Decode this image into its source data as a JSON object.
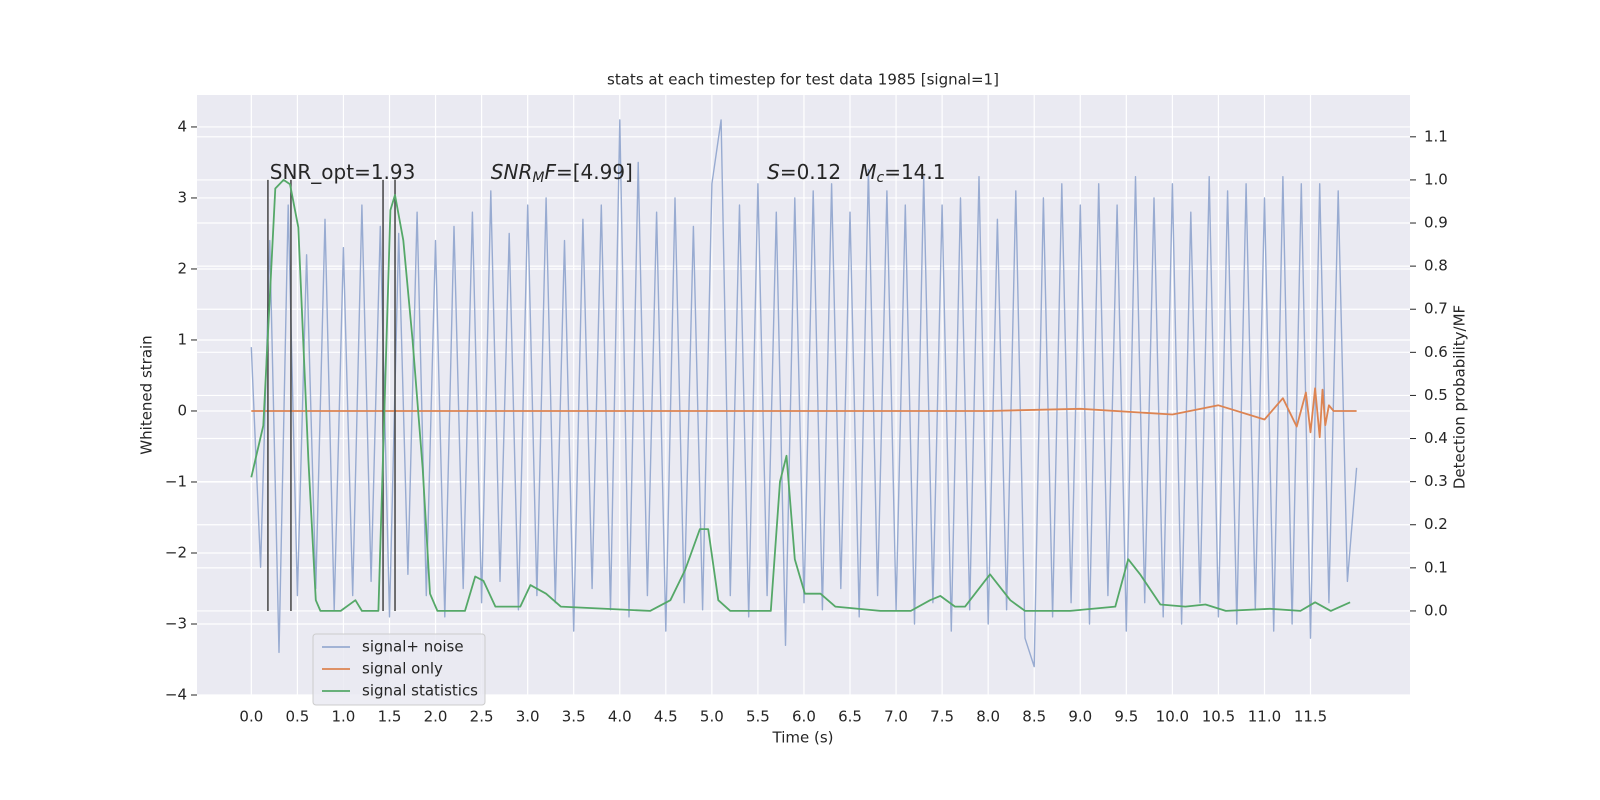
{
  "chart_data": {
    "type": "line",
    "title": "stats at each timestep for test data 1985 [signal=1]",
    "xlabel": "Time (s)",
    "ylabel": "Whitened strain",
    "y2label": "Detection probability/MF",
    "xlim": [
      -0.59,
      12.58
    ],
    "ylim": [
      -4.0,
      4.45
    ],
    "y2lim": [
      -0.195,
      1.197
    ],
    "xticks": [
      {
        "value": 0,
        "label": "0.0"
      },
      {
        "value": 0.5,
        "label": "0.5"
      },
      {
        "value": 1,
        "label": "1.0"
      },
      {
        "value": 1.5,
        "label": "1.5"
      },
      {
        "value": 2,
        "label": "2.0"
      },
      {
        "value": 2.5,
        "label": "2.5"
      },
      {
        "value": 3,
        "label": "3.0"
      },
      {
        "value": 3.5,
        "label": "3.5"
      },
      {
        "value": 4,
        "label": "4.0"
      },
      {
        "value": 4.5,
        "label": "4.5"
      },
      {
        "value": 5,
        "label": "5.0"
      },
      {
        "value": 5.5,
        "label": "5.5"
      },
      {
        "value": 6,
        "label": "6.0"
      },
      {
        "value": 6.5,
        "label": "6.5"
      },
      {
        "value": 7,
        "label": "7.0"
      },
      {
        "value": 7.5,
        "label": "7.5"
      },
      {
        "value": 8,
        "label": "8.0"
      },
      {
        "value": 8.5,
        "label": "8.5"
      },
      {
        "value": 9,
        "label": "9.0"
      },
      {
        "value": 9.5,
        "label": "9.5"
      },
      {
        "value": 10,
        "label": "10.0"
      },
      {
        "value": 10.5,
        "label": "10.5"
      },
      {
        "value": 11,
        "label": "11.0"
      },
      {
        "value": 11.5,
        "label": "11.5"
      }
    ],
    "yticks": [
      {
        "value": -4,
        "label": "−4"
      },
      {
        "value": -3,
        "label": "−3"
      },
      {
        "value": -2,
        "label": "−2"
      },
      {
        "value": -1,
        "label": "−1"
      },
      0,
      1,
      2,
      3,
      4
    ],
    "y2ticks": [
      {
        "value": 0,
        "label": "0.0"
      },
      {
        "value": 0.1,
        "label": "0.1"
      },
      {
        "value": 0.2,
        "label": "0.2"
      },
      {
        "value": 0.3,
        "label": "0.3"
      },
      {
        "value": 0.4,
        "label": "0.4"
      },
      {
        "value": 0.5,
        "label": "0.5"
      },
      {
        "value": 0.6,
        "label": "0.6"
      },
      {
        "value": 0.7,
        "label": "0.7"
      },
      {
        "value": 0.8,
        "label": "0.8"
      },
      {
        "value": 0.9,
        "label": "0.9"
      },
      {
        "value": 1,
        "label": "1.0"
      },
      {
        "value": 1.1,
        "label": "1.1"
      }
    ],
    "grid": true,
    "legend": "lower left",
    "series": [
      {
        "name": "signal+ noise",
        "color": "#98abd1",
        "x": [
          0,
          0.1,
          0.2,
          0.3,
          0.4,
          0.5,
          0.6,
          0.7,
          0.8,
          0.9,
          1,
          1.1,
          1.2,
          1.3,
          1.4,
          1.5,
          1.6,
          1.7,
          1.8,
          1.9,
          2,
          2.1,
          2.2,
          2.3,
          2.4,
          2.5,
          2.6,
          2.7,
          2.8,
          2.9,
          3,
          3.1,
          3.2,
          3.3,
          3.4,
          3.5,
          3.6,
          3.7,
          3.8,
          3.9,
          4,
          4.1,
          4.2,
          4.3,
          4.4,
          4.5,
          4.6,
          4.7,
          4.8,
          4.9,
          5,
          5.1,
          5.2,
          5.3,
          5.4,
          5.5,
          5.6,
          5.7,
          5.8,
          5.9,
          6,
          6.1,
          6.2,
          6.3,
          6.4,
          6.5,
          6.6,
          6.7,
          6.8,
          6.9,
          7,
          7.1,
          7.2,
          7.3,
          7.4,
          7.5,
          7.6,
          7.7,
          7.8,
          7.9,
          8,
          8.1,
          8.2,
          8.3,
          8.4,
          8.5,
          8.6,
          8.7,
          8.8,
          8.9,
          9,
          9.1,
          9.2,
          9.3,
          9.4,
          9.5,
          9.6,
          9.7,
          9.8,
          9.9,
          10,
          10.1,
          10.2,
          10.3,
          10.4,
          10.5,
          10.6,
          10.7,
          10.8,
          10.9,
          11,
          11.1,
          11.2,
          11.3,
          11.4,
          11.5,
          11.6,
          11.7,
          11.8,
          11.9,
          12
        ],
        "values": [
          0.9,
          -2.2,
          2.4,
          -3.4,
          2.9,
          -2.6,
          2.2,
          -2.5,
          2.7,
          -2.8,
          2.3,
          -2.6,
          2.9,
          -2.4,
          2.6,
          -2.9,
          2.5,
          -2.3,
          2.8,
          -2.6,
          2.4,
          -2.9,
          2.6,
          -2.5,
          2.8,
          -2.7,
          3.1,
          -2.4,
          2.5,
          -2.8,
          2.9,
          -2.6,
          3.0,
          -2.7,
          2.4,
          -3.1,
          2.7,
          -2.5,
          2.9,
          -2.8,
          4.1,
          -2.9,
          3.5,
          -2.6,
          2.8,
          -3.1,
          3.0,
          -2.7,
          2.6,
          -2.8,
          3.2,
          4.1,
          -2.6,
          2.9,
          -2.9,
          3.2,
          -2.6,
          2.8,
          -3.3,
          3.0,
          -2.7,
          3.1,
          -2.8,
          3.2,
          -2.5,
          2.8,
          -2.9,
          3.4,
          -2.6,
          3.1,
          -2.8,
          2.9,
          -3.0,
          3.3,
          -2.7,
          2.9,
          -3.1,
          3.0,
          -2.8,
          3.3,
          -3.0,
          2.7,
          -2.8,
          3.1,
          -3.2,
          -3.6,
          3.0,
          -2.9,
          3.2,
          -2.7,
          2.9,
          -3.0,
          3.2,
          -2.6,
          2.9,
          -3.1,
          3.3,
          -2.7,
          3.0,
          -2.9,
          3.2,
          -3.0,
          2.8,
          -2.7,
          3.3,
          -2.9,
          3.1,
          -3.0,
          3.2,
          -2.8,
          3.0,
          -3.1,
          3.3,
          -3.0,
          3.2,
          -3.2,
          3.2,
          -2.7,
          3.1,
          -2.4,
          -0.8
        ]
      },
      {
        "name": "signal only",
        "color": "#dd8452",
        "x": [
          0,
          2,
          4,
          6,
          8,
          9,
          10,
          10.5,
          11,
          11.2,
          11.35,
          11.45,
          11.5,
          11.55,
          11.6,
          11.63,
          11.66,
          11.7,
          11.75,
          12
        ],
        "values": [
          0,
          0,
          0,
          0,
          0,
          0.03,
          -0.05,
          0.08,
          -0.12,
          0.18,
          -0.22,
          0.26,
          -0.3,
          0.32,
          -0.37,
          0.3,
          -0.2,
          0.08,
          0,
          0
        ]
      },
      {
        "name": "signal statistics",
        "color": "#55a868",
        "axis": "y2",
        "x": [
          0,
          0.13,
          0.26,
          0.35,
          0.42,
          0.51,
          0.62,
          0.7,
          0.75,
          0.97,
          1.13,
          1.2,
          1.38,
          1.51,
          1.56,
          1.65,
          1.75,
          1.86,
          1.94,
          2.02,
          2.32,
          2.43,
          2.52,
          2.65,
          2.92,
          3.03,
          3.2,
          3.36,
          4.33,
          4.55,
          4.71,
          4.87,
          4.96,
          5.07,
          5.2,
          5.64,
          5.74,
          5.81,
          5.9,
          6.01,
          6.18,
          6.34,
          6.83,
          7.16,
          7.37,
          7.48,
          7.64,
          7.75,
          8.02,
          8.24,
          8.4,
          8.89,
          9.38,
          9.52,
          9.65,
          9.87,
          10.14,
          10.36,
          10.58,
          11.06,
          11.39,
          11.55,
          11.72,
          11.93
        ],
        "values": [
          0.31,
          0.43,
          0.98,
          1.0,
          0.99,
          0.89,
          0.35,
          0.025,
          0,
          0,
          0.025,
          0,
          0,
          0.93,
          0.965,
          0.86,
          0.63,
          0.33,
          0.04,
          0,
          0,
          0.08,
          0.07,
          0.01,
          0.01,
          0.06,
          0.04,
          0.01,
          0,
          0.025,
          0.095,
          0.19,
          0.19,
          0.025,
          0,
          0,
          0.3,
          0.36,
          0.12,
          0.04,
          0.04,
          0.01,
          0,
          0,
          0.025,
          0.035,
          0.01,
          0.01,
          0.085,
          0.025,
          0,
          0,
          0.01,
          0.12,
          0.085,
          0.015,
          0.01,
          0.015,
          0,
          0.005,
          0,
          0.02,
          0,
          0.02
        ]
      }
    ],
    "vlines": {
      "x": [
        0.18,
        0.43,
        1.43,
        1.56
      ],
      "ymin": 0,
      "ymax": 1,
      "axis": "y2",
      "color": "#444444"
    },
    "annotations": [
      {
        "x": 0.2,
        "y": 3.35,
        "parts": [
          {
            "text": "SNR_opt=1.93"
          }
        ]
      },
      {
        "x": 2.6,
        "y": 3.35,
        "parts": [
          {
            "text": "SNR",
            "italic": true
          },
          {
            "text": "M",
            "italic": true,
            "sub": true
          },
          {
            "text": "F",
            "italic": true
          },
          {
            "text": "=[4.99]"
          }
        ]
      },
      {
        "x": 5.6,
        "y": 3.35,
        "parts": [
          {
            "text": "S",
            "italic": true
          },
          {
            "text": "=0.12"
          }
        ]
      },
      {
        "x": 6.6,
        "y": 3.35,
        "parts": [
          {
            "text": "M",
            "italic": true
          },
          {
            "text": "c",
            "italic": true,
            "sub": true
          },
          {
            "text": "=14.1"
          }
        ]
      }
    ]
  }
}
